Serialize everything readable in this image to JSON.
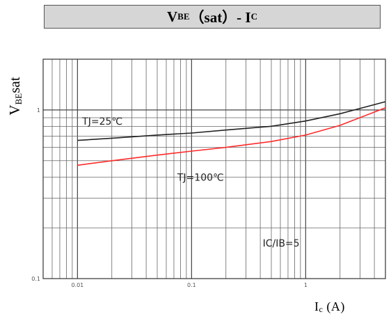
{
  "header": {
    "title_main": "V",
    "title_sub": "BE",
    "title_rest": "（sat）- I",
    "title_sub2": "C"
  },
  "chart_data": {
    "type": "line",
    "title": "VBE（sat）- IC",
    "ylabel": "VBEsat",
    "xlabel": "Ic (A)",
    "x_scale": "log",
    "y_scale": "log",
    "xlim": [
      0.005,
      5
    ],
    "ylim": [
      0.1,
      2
    ],
    "grid": true,
    "x_ticks": [
      {
        "value": 0.01,
        "label": "0.01"
      },
      {
        "value": 0.1,
        "label": "0.1"
      },
      {
        "value": 1,
        "label": "1"
      }
    ],
    "y_ticks": [
      {
        "value": 0.1,
        "label": "0.1"
      },
      {
        "value": 1,
        "label": "1"
      }
    ],
    "series": [
      {
        "name": "TJ=25℃",
        "color": "#222222",
        "x": [
          0.01,
          0.02,
          0.05,
          0.1,
          0.2,
          0.5,
          1,
          2,
          5
        ],
        "y": [
          0.66,
          0.68,
          0.71,
          0.73,
          0.76,
          0.8,
          0.86,
          0.95,
          1.12
        ]
      },
      {
        "name": "TJ=100℃",
        "color": "#ff2a2a",
        "x": [
          0.01,
          0.02,
          0.05,
          0.1,
          0.2,
          0.5,
          1,
          2,
          5
        ],
        "y": [
          0.47,
          0.5,
          0.54,
          0.57,
          0.6,
          0.65,
          0.71,
          0.81,
          1.03
        ]
      }
    ],
    "annotations": [
      {
        "text": "TJ=25℃",
        "x": 0.011,
        "y": 0.82
      },
      {
        "text": "TJ=100℃",
        "x": 0.075,
        "y": 0.38
      },
      {
        "text": "IC/IB=5",
        "x": 0.42,
        "y": 0.155
      }
    ]
  },
  "xaxis_label": {
    "main": "I",
    "sub": "c",
    "rest": " (A)"
  },
  "yaxis_label": {
    "main": "V",
    "sub": "BE",
    "rest": "sat"
  }
}
